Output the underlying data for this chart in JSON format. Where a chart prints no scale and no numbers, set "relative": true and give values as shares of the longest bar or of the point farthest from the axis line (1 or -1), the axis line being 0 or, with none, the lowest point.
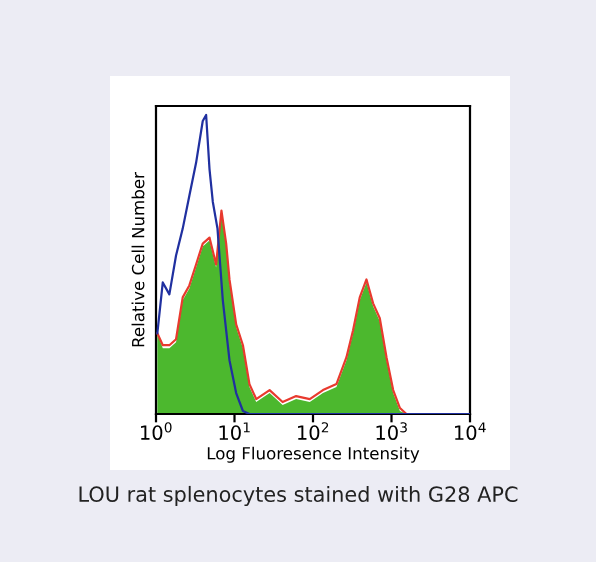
{
  "chart_data": {
    "type": "line",
    "relative": true,
    "log": "x",
    "grid": false,
    "legend": false,
    "xlabel": "Log Fluoresence Intensity",
    "ylabel": "Relative Cell Number",
    "annotations": [
      "LOU rat splenocytes stained with G28 APC"
    ],
    "xlim": [
      1,
      10000
    ],
    "xticks": [
      {
        "value": 1,
        "label": "10$^{0}$"
      },
      {
        "value": 10,
        "label": "10$^{1}$"
      },
      {
        "value": 100,
        "label": "10$^{2}$"
      },
      {
        "value": 1000,
        "label": "10$^{3}$"
      },
      {
        "value": 10000,
        "label": "10$^{4}$"
      }
    ],
    "series": [
      {
        "type": "area",
        "color": "#4cb82e",
        "x": [
          1.04,
          1.22,
          1.48,
          1.8,
          2.19,
          2.66,
          3.24,
          3.94,
          4.8,
          5.83,
          6.82,
          7.83,
          8.63,
          10.5,
          12.8,
          15.5,
          18.9,
          28,
          41,
          61,
          91,
          134,
          199,
          267,
          324,
          394,
          480,
          583,
          709,
          863,
          1050,
          1280,
          1550
        ],
        "values": [
          0.27,
          0.22,
          0.22,
          0.24,
          0.38,
          0.42,
          0.49,
          0.56,
          0.58,
          0.49,
          0.67,
          0.56,
          0.44,
          0.29,
          0.22,
          0.09,
          0.04,
          0.07,
          0.03,
          0.05,
          0.04,
          0.07,
          0.09,
          0.18,
          0.27,
          0.38,
          0.44,
          0.36,
          0.31,
          0.18,
          0.07,
          0.01,
          0
        ]
      },
      {
        "color": "#e83a2e",
        "x": [
          1.04,
          1.22,
          1.48,
          1.8,
          2.19,
          2.66,
          3.24,
          3.94,
          4.8,
          5.83,
          6.82,
          7.83,
          8.63,
          10.5,
          12.8,
          15.5,
          18.9,
          28,
          41,
          61,
          91,
          134,
          199,
          267,
          324,
          394,
          480,
          583,
          709,
          863,
          1050,
          1280,
          1550
        ],
        "values": [
          0.27,
          0.23,
          0.23,
          0.25,
          0.39,
          0.43,
          0.5,
          0.57,
          0.59,
          0.5,
          0.68,
          0.57,
          0.45,
          0.3,
          0.23,
          0.1,
          0.05,
          0.08,
          0.04,
          0.06,
          0.05,
          0.08,
          0.1,
          0.19,
          0.28,
          0.39,
          0.45,
          0.37,
          0.32,
          0.19,
          0.08,
          0.02,
          0
        ]
      },
      {
        "color": "#2030a0",
        "x": [
          1.04,
          1.22,
          1.48,
          1.8,
          2.19,
          2.66,
          3.24,
          3.94,
          4.35,
          4.8,
          5.29,
          6.07,
          7.1,
          8.63,
          10.5,
          12.8,
          15.5,
          10000
        ],
        "values": [
          0.27,
          0.44,
          0.4,
          0.53,
          0.62,
          0.73,
          0.84,
          0.98,
          1,
          0.82,
          0.71,
          0.62,
          0.38,
          0.18,
          0.07,
          0.01,
          0,
          0
        ]
      }
    ]
  }
}
